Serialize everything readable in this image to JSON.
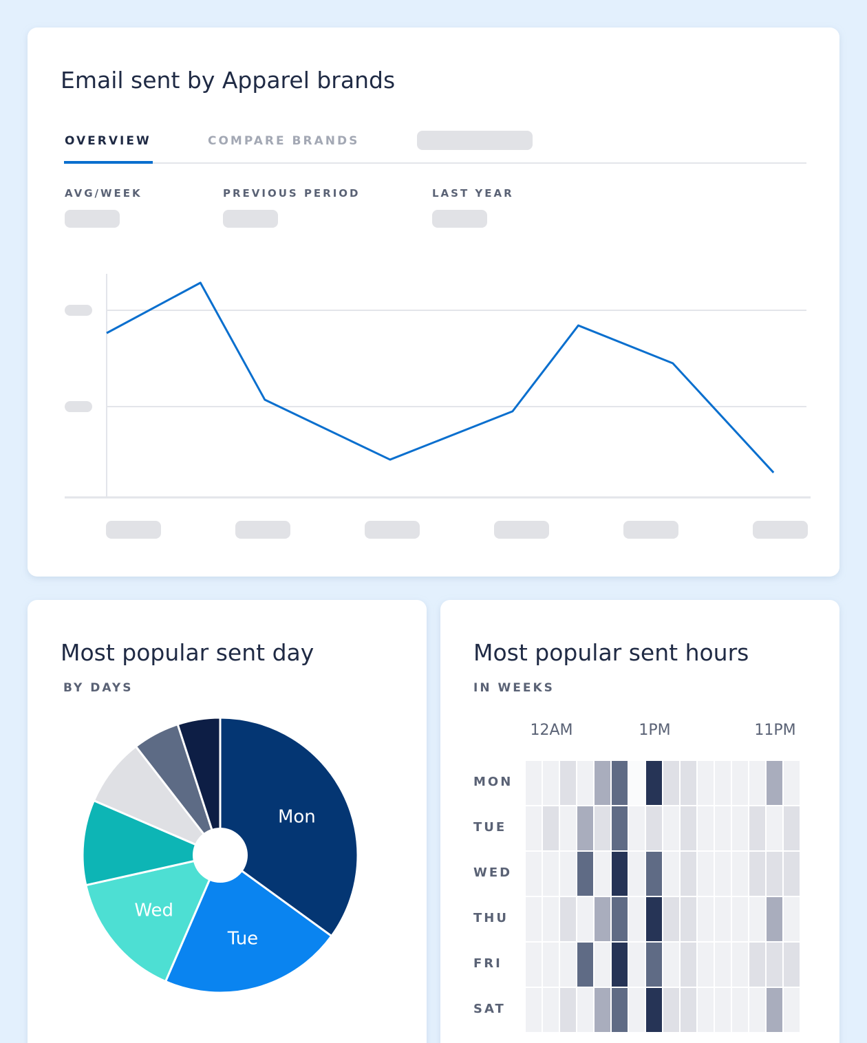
{
  "overview_card": {
    "title": "Email sent by Apparel brands",
    "tabs": [
      "OVERVIEW",
      "COMPARE BRANDS"
    ],
    "stats": [
      "AVG/WEEK",
      "PREVIOUS PERIOD",
      "LAST YEAR"
    ]
  },
  "chart_data": [
    {
      "type": "line",
      "x": [
        0,
        13.4,
        22.6,
        40.5,
        58,
        67.4,
        80.9,
        95.3
      ],
      "xlim": [
        0,
        100
      ],
      "ylim": [
        0,
        100
      ],
      "yticks": [
        40.6,
        83.7
      ],
      "grid": true,
      "series": [
        {
          "color": "#0a6fce",
          "values": [
            73.5,
            96,
            43.7,
            16.9,
            38.5,
            76.9,
            60,
            11.1
          ]
        }
      ]
    },
    {
      "type": "pie",
      "title": "Most popular sent day",
      "subtitle": "BY DAYS",
      "categories": [
        "Mon",
        "Tue",
        "Wed",
        null,
        null,
        null,
        null
      ],
      "values": [
        35,
        21.5,
        15,
        10,
        8,
        5.5,
        5
      ],
      "colors": [
        "#043673",
        "#0a84f0",
        "#4ddfd3",
        "#0db5b5",
        "#dfe0e4",
        "#5d6b85",
        "#0d1e45"
      ]
    },
    {
      "type": "heatmap",
      "title": "Most popular sent hours",
      "subtitle": "IN WEEKS",
      "rows": [
        "MON",
        "TUE",
        "WED",
        "THU",
        "FRI",
        "SAT"
      ],
      "columns": [
        null,
        "12AM",
        null,
        null,
        null,
        null,
        null,
        "1PM",
        null,
        null,
        null,
        null,
        null,
        null,
        "11PM",
        null
      ],
      "zlim": [
        0,
        5
      ],
      "colors": [
        "#fafbfc",
        "#f0f1f4",
        "#dfe0e6",
        "#a9adbd",
        "#5f6b85",
        "#263456"
      ],
      "values": [
        [
          1,
          1,
          2,
          1,
          3,
          4,
          0,
          5,
          2,
          2,
          1,
          1,
          1,
          1,
          3,
          1
        ],
        [
          1,
          2,
          1,
          3,
          2,
          4,
          1,
          2,
          1,
          2,
          1,
          1,
          1,
          2,
          1,
          2
        ],
        [
          1,
          1,
          1,
          4,
          1,
          5,
          1,
          4,
          1,
          2,
          1,
          1,
          1,
          2,
          2,
          2
        ],
        [
          1,
          1,
          2,
          1,
          3,
          4,
          1,
          5,
          2,
          2,
          1,
          1,
          1,
          1,
          3,
          1
        ],
        [
          1,
          1,
          1,
          4,
          1,
          5,
          1,
          4,
          1,
          2,
          1,
          1,
          1,
          2,
          2,
          2
        ],
        [
          1,
          1,
          2,
          1,
          3,
          4,
          1,
          5,
          2,
          2,
          1,
          1,
          1,
          1,
          3,
          1
        ]
      ]
    }
  ]
}
